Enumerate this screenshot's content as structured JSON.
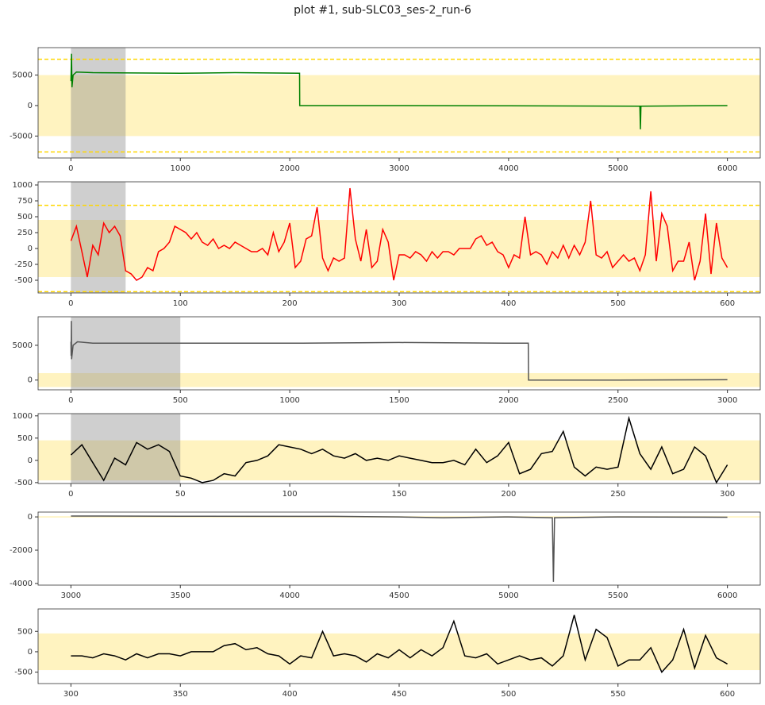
{
  "title": "plot #1, sub-SLC03_ses-2_run-6",
  "chart_data": [
    {
      "type": "line",
      "xlim": [
        -300,
        6300
      ],
      "ylim": [
        -8600,
        9500
      ],
      "xticks": [
        0,
        1000,
        2000,
        3000,
        4000,
        5000,
        6000
      ],
      "yticks": [
        -5000,
        0,
        5000
      ],
      "band": [
        -5000,
        5000
      ],
      "hlines": [
        7600,
        -7600
      ],
      "vspan": [
        0,
        500
      ],
      "series": [
        {
          "color": "#008000",
          "x": [
            0,
            5,
            10,
            20,
            50,
            200,
            1000,
            1500,
            2090,
            2091,
            3000,
            4000,
            5200,
            5205,
            5210,
            6000
          ],
          "values": [
            4000,
            8500,
            3000,
            5000,
            5500,
            5400,
            5300,
            5400,
            5300,
            0,
            0,
            -50,
            -100,
            -3900,
            -100,
            0
          ]
        }
      ]
    },
    {
      "type": "line",
      "xlim": [
        -30,
        630
      ],
      "ylim": [
        -700,
        1050
      ],
      "xticks": [
        0,
        100,
        200,
        300,
        400,
        500,
        600
      ],
      "yticks": [
        -500,
        -250,
        0,
        250,
        500,
        750,
        1000
      ],
      "band": [
        -450,
        450
      ],
      "hlines": [
        680,
        -680
      ],
      "vspan": [
        0,
        50
      ],
      "series": [
        {
          "color": "#ff0000",
          "x": [
            0,
            5,
            10,
            15,
            20,
            25,
            30,
            35,
            40,
            45,
            50,
            55,
            60,
            65,
            70,
            75,
            80,
            85,
            90,
            95,
            100,
            105,
            110,
            115,
            120,
            125,
            130,
            135,
            140,
            145,
            150,
            155,
            160,
            165,
            170,
            175,
            180,
            185,
            190,
            195,
            200,
            205,
            210,
            215,
            220,
            225,
            230,
            235,
            240,
            245,
            250,
            255,
            260,
            265,
            270,
            275,
            280,
            285,
            290,
            295,
            300,
            305,
            310,
            315,
            320,
            325,
            330,
            335,
            340,
            345,
            350,
            355,
            360,
            365,
            370,
            375,
            380,
            385,
            390,
            395,
            400,
            405,
            410,
            415,
            420,
            425,
            430,
            435,
            440,
            445,
            450,
            455,
            460,
            465,
            470,
            475,
            480,
            485,
            490,
            495,
            500,
            505,
            510,
            515,
            520,
            525,
            530,
            535,
            540,
            545,
            550,
            555,
            560,
            565,
            570,
            575,
            580,
            585,
            590,
            595,
            600
          ],
          "values": [
            120,
            350,
            -50,
            -450,
            50,
            -100,
            400,
            250,
            350,
            200,
            -350,
            -400,
            -500,
            -450,
            -300,
            -350,
            -50,
            0,
            100,
            350,
            300,
            250,
            150,
            250,
            100,
            50,
            150,
            0,
            50,
            0,
            100,
            50,
            0,
            -50,
            -50,
            0,
            -100,
            250,
            -50,
            100,
            400,
            -300,
            -200,
            150,
            200,
            650,
            -150,
            -350,
            -150,
            -200,
            -150,
            950,
            150,
            -200,
            300,
            -300,
            -200,
            300,
            100,
            -500,
            -100,
            -100,
            -150,
            -50,
            -100,
            -200,
            -50,
            -150,
            -50,
            -50,
            -100,
            0,
            0,
            0,
            150,
            200,
            50,
            100,
            -50,
            -100,
            -300,
            -100,
            -150,
            500,
            -100,
            -50,
            -100,
            -250,
            -50,
            -150,
            50,
            -150,
            50,
            -100,
            100,
            750,
            -100,
            -150,
            -50,
            -300,
            -200,
            -100,
            -200,
            -150,
            -350,
            -100,
            900,
            -200,
            550,
            350,
            -350,
            -200,
            -200,
            100,
            -500,
            -200,
            550,
            -400,
            400,
            -150,
            -300
          ]
        }
      ]
    },
    {
      "type": "line",
      "xlim": [
        -150,
        3150
      ],
      "ylim": [
        -1400,
        9100
      ],
      "xticks": [
        0,
        500,
        1000,
        1500,
        2000,
        2500,
        3000
      ],
      "yticks": [
        0,
        5000
      ],
      "band": [
        -1000,
        1000
      ],
      "vspan": [
        0,
        500
      ],
      "series": [
        {
          "color": "#555555",
          "x": [
            0,
            1,
            2,
            3,
            10,
            30,
            100,
            500,
            1000,
            1500,
            2000,
            2090,
            2091,
            2500,
            3000
          ],
          "values": [
            5500,
            3500,
            8500,
            3000,
            5000,
            5500,
            5300,
            5300,
            5300,
            5400,
            5300,
            5300,
            0,
            0,
            50
          ]
        }
      ]
    },
    {
      "type": "line",
      "xlim": [
        -15,
        315
      ],
      "ylim": [
        -520,
        1050
      ],
      "xticks": [
        0,
        50,
        100,
        150,
        200,
        250,
        300
      ],
      "yticks": [
        -500,
        0,
        500,
        1000
      ],
      "band": [
        -450,
        450
      ],
      "vspan": [
        0,
        50
      ],
      "series": [
        {
          "color": "#000000",
          "x": [
            0,
            5,
            10,
            15,
            20,
            25,
            30,
            35,
            40,
            45,
            50,
            55,
            60,
            65,
            70,
            75,
            80,
            85,
            90,
            95,
            100,
            105,
            110,
            115,
            120,
            125,
            130,
            135,
            140,
            145,
            150,
            155,
            160,
            165,
            170,
            175,
            180,
            185,
            190,
            195,
            200,
            205,
            210,
            215,
            220,
            225,
            230,
            235,
            240,
            245,
            250,
            255,
            260,
            265,
            270,
            275,
            280,
            285,
            290,
            295,
            300
          ],
          "values": [
            120,
            350,
            -50,
            -450,
            50,
            -100,
            400,
            250,
            350,
            200,
            -350,
            -400,
            -500,
            -450,
            -300,
            -350,
            -50,
            0,
            100,
            350,
            300,
            250,
            150,
            250,
            100,
            50,
            150,
            0,
            50,
            0,
            100,
            50,
            0,
            -50,
            -50,
            0,
            -100,
            250,
            -50,
            100,
            400,
            -300,
            -200,
            150,
            200,
            650,
            -150,
            -350,
            -150,
            -200,
            -150,
            950,
            150,
            -200,
            300,
            -300,
            -200,
            300,
            100,
            -500,
            -100
          ]
        }
      ]
    },
    {
      "type": "line",
      "xlim": [
        2850,
        6150
      ],
      "ylim": [
        -4100,
        290
      ],
      "xticks": [
        3000,
        3500,
        4000,
        4500,
        5000,
        5500,
        6000
      ],
      "yticks": [
        -4000,
        -2000,
        0
      ],
      "band": [
        -40,
        40
      ],
      "series": [
        {
          "color": "#555555",
          "x": [
            3000,
            3500,
            4200,
            4500,
            4700,
            5000,
            5200,
            5205,
            5210,
            5500,
            6000
          ],
          "values": [
            50,
            40,
            30,
            0,
            -50,
            0,
            -50,
            -3900,
            -50,
            0,
            -20
          ]
        }
      ]
    },
    {
      "type": "line",
      "xlim": [
        285,
        615
      ],
      "ylim": [
        -780,
        1050
      ],
      "xticks": [
        300,
        350,
        400,
        450,
        500,
        550,
        600
      ],
      "yticks": [
        -500,
        0,
        500
      ],
      "band": [
        -450,
        450
      ],
      "series": [
        {
          "color": "#000000",
          "x": [
            300,
            305,
            310,
            315,
            320,
            325,
            330,
            335,
            340,
            345,
            350,
            355,
            360,
            365,
            370,
            375,
            380,
            385,
            390,
            395,
            400,
            405,
            410,
            415,
            420,
            425,
            430,
            435,
            440,
            445,
            450,
            455,
            460,
            465,
            470,
            475,
            480,
            485,
            490,
            495,
            500,
            505,
            510,
            515,
            520,
            525,
            530,
            535,
            540,
            545,
            550,
            555,
            560,
            565,
            570,
            575,
            580,
            585,
            590,
            595,
            600
          ],
          "values": [
            -100,
            -100,
            -150,
            -50,
            -100,
            -200,
            -50,
            -150,
            -50,
            -50,
            -100,
            0,
            0,
            0,
            150,
            200,
            50,
            100,
            -50,
            -100,
            -300,
            -100,
            -150,
            500,
            -100,
            -50,
            -100,
            -250,
            -50,
            -150,
            50,
            -150,
            50,
            -100,
            100,
            750,
            -100,
            -150,
            -50,
            -300,
            -200,
            -100,
            -200,
            -150,
            -350,
            -100,
            900,
            -200,
            550,
            350,
            -350,
            -200,
            -200,
            100,
            -500,
            -200,
            550,
            -400,
            400,
            -150,
            -300
          ]
        }
      ]
    }
  ]
}
